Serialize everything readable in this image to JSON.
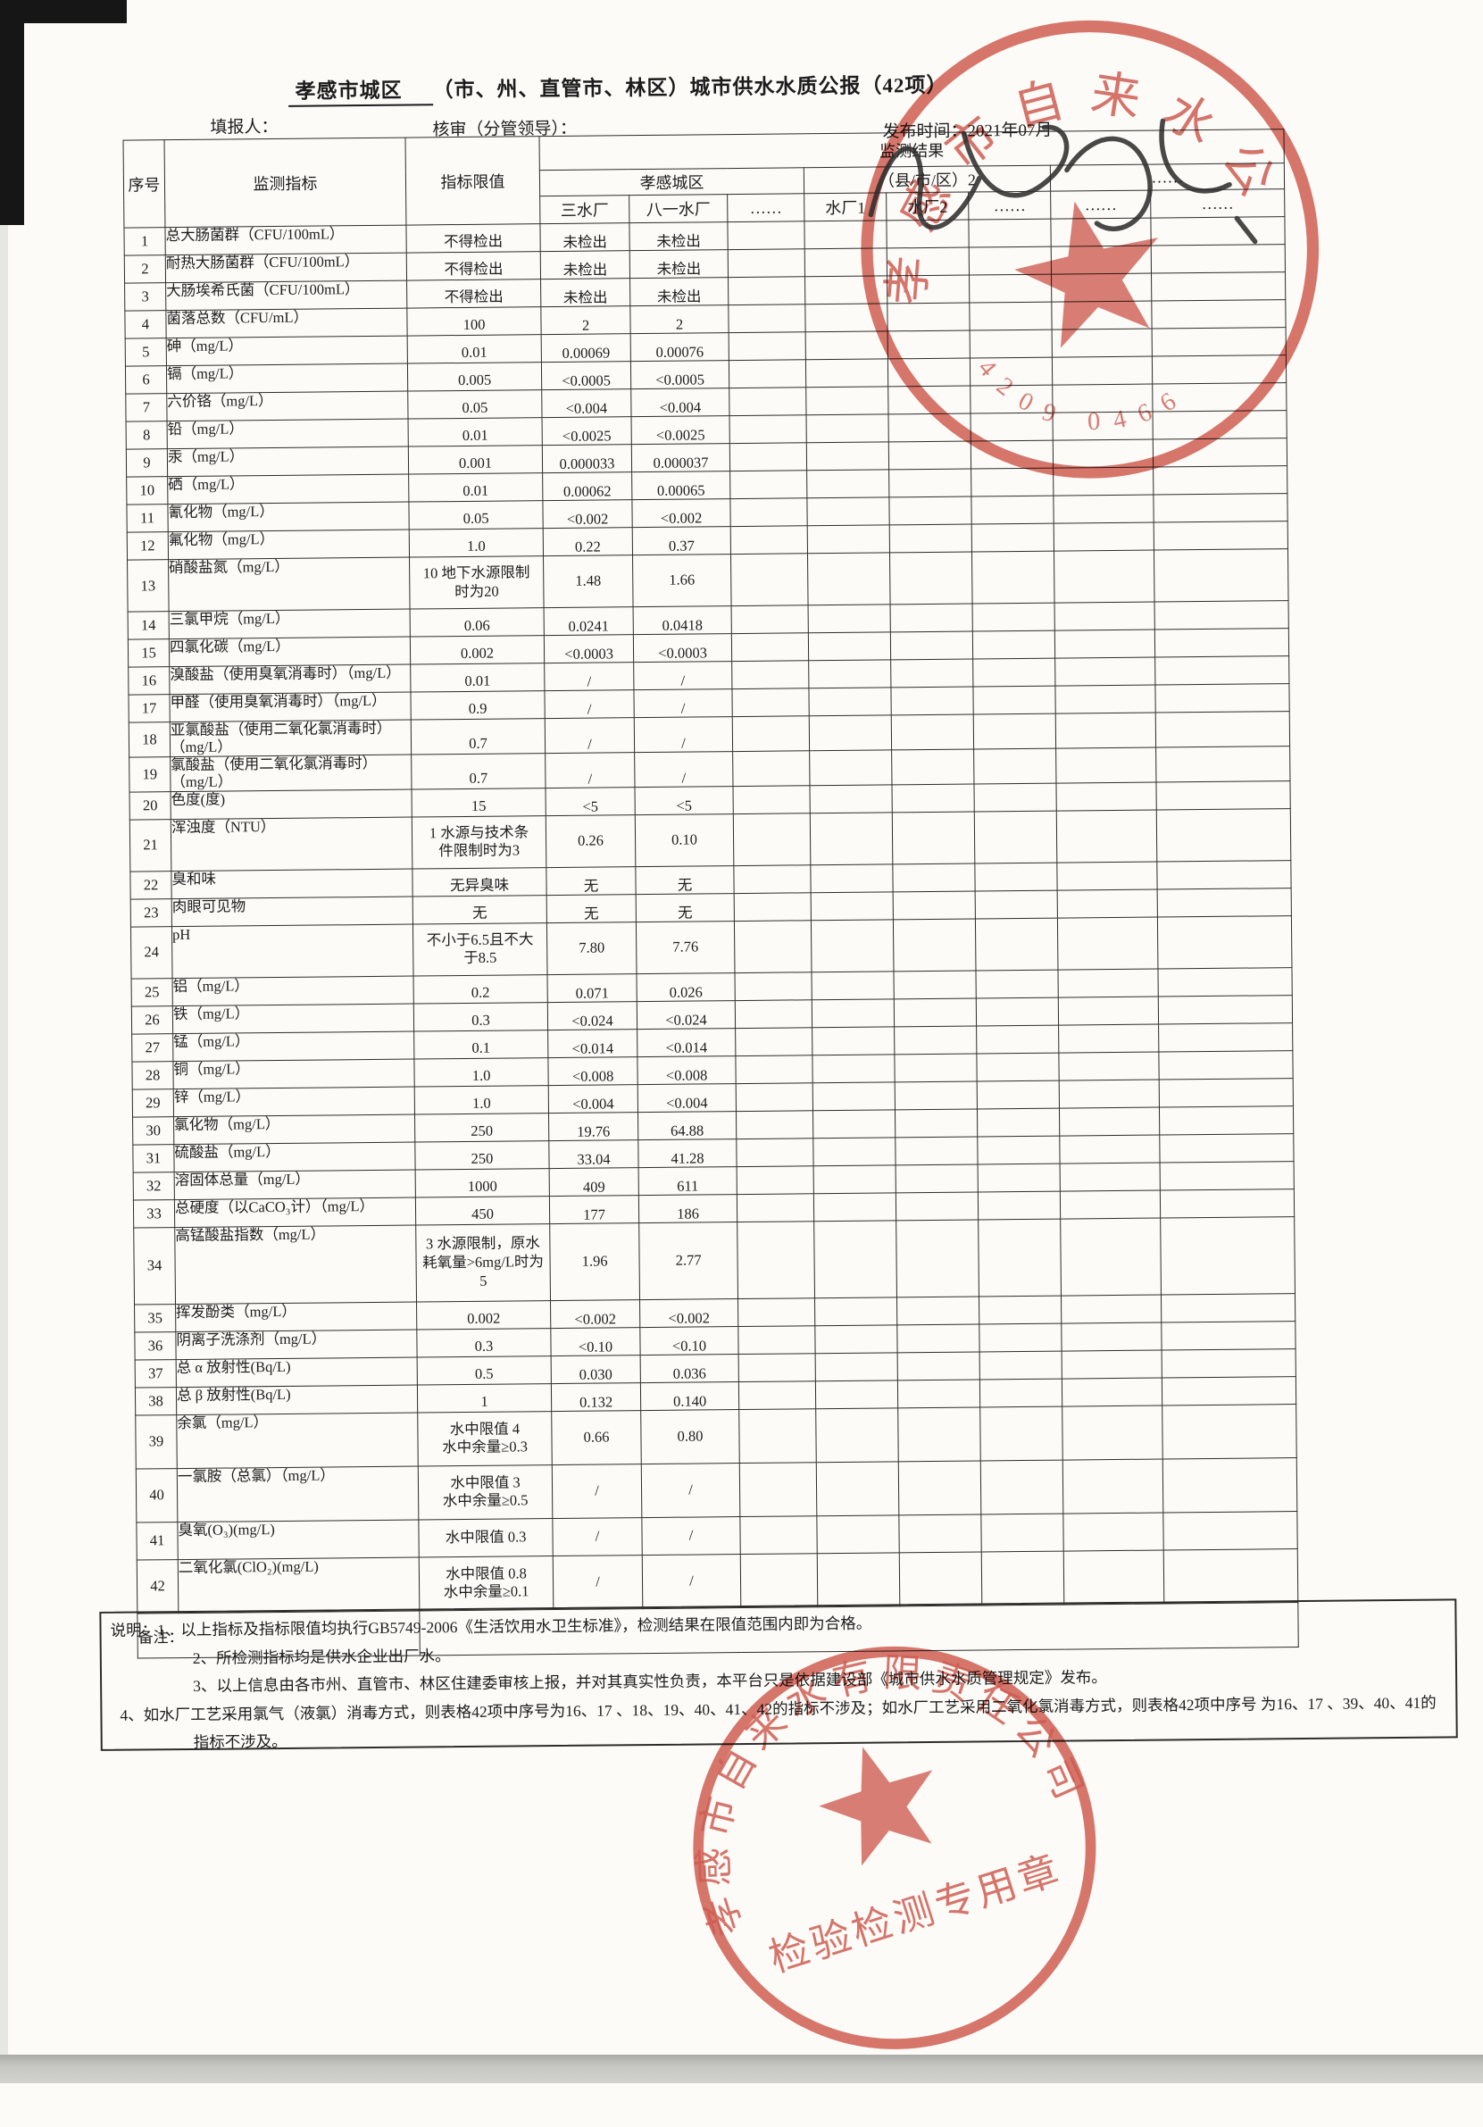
{
  "page": {
    "region": "孝感市城区",
    "title_suffix": "（市、州、直管市、林区）城市供水水质公报（42项）",
    "filler_label": "填报人：",
    "reviewer_label": "核审（分管领导）：",
    "publish_label": "发布时间：",
    "publish_value": "2021年07月"
  },
  "table": {
    "headers": {
      "seq": "序号",
      "indicator": "监测指标",
      "limit": "指标限值",
      "result": "监测结果",
      "region_group": "孝感城区",
      "county_group": "（县/市/区）2",
      "more_group": "……",
      "plants": [
        "三水厂",
        "八一水厂",
        "……",
        "水厂1",
        "水厂2",
        "……",
        "……",
        "……"
      ]
    },
    "remark_label": "备注：",
    "rows": [
      {
        "no": "1",
        "indicator": "总大肠菌群（CFU/100mL）",
        "limit": "不得检出",
        "v1": "未检出",
        "v2": "未检出"
      },
      {
        "no": "2",
        "indicator": "耐热大肠菌群（CFU/100mL）",
        "limit": "不得检出",
        "v1": "未检出",
        "v2": "未检出"
      },
      {
        "no": "3",
        "indicator": "大肠埃希氏菌（CFU/100mL）",
        "limit": "不得检出",
        "v1": "未检出",
        "v2": "未检出"
      },
      {
        "no": "4",
        "indicator": "菌落总数（CFU/mL）",
        "limit": "100",
        "v1": "2",
        "v2": "2"
      },
      {
        "no": "5",
        "indicator": "砷（mg/L）",
        "limit": "0.01",
        "v1": "0.00069",
        "v2": "0.00076"
      },
      {
        "no": "6",
        "indicator": "镉（mg/L）",
        "limit": "0.005",
        "v1": "<0.0005",
        "v2": "<0.0005"
      },
      {
        "no": "7",
        "indicator": "六价铬（mg/L）",
        "limit": "0.05",
        "v1": "<0.004",
        "v2": "<0.004"
      },
      {
        "no": "8",
        "indicator": "铅（mg/L）",
        "limit": "0.01",
        "v1": "<0.0025",
        "v2": "<0.0025"
      },
      {
        "no": "9",
        "indicator": "汞（mg/L）",
        "limit": "0.001",
        "v1": "0.000033",
        "v2": "0.000037"
      },
      {
        "no": "10",
        "indicator": "硒（mg/L）",
        "limit": "0.01",
        "v1": "0.00062",
        "v2": "0.00065"
      },
      {
        "no": "11",
        "indicator": "氰化物（mg/L）",
        "limit": "0.05",
        "v1": "<0.002",
        "v2": "<0.002"
      },
      {
        "no": "12",
        "indicator": "氟化物（mg/L）",
        "limit": "1.0",
        "v1": "0.22",
        "v2": "0.37"
      },
      {
        "no": "13",
        "indicator": "硝酸盐氮（mg/L）",
        "limit": "10 地下水源限制\n时为20",
        "v1": "1.48",
        "v2": "1.66",
        "h": 58
      },
      {
        "no": "14",
        "indicator": "三氯甲烷（mg/L）",
        "limit": "0.06",
        "v1": "0.0241",
        "v2": "0.0418"
      },
      {
        "no": "15",
        "indicator": "四氯化碳（mg/L）",
        "limit": "0.002",
        "v1": "<0.0003",
        "v2": "<0.0003"
      },
      {
        "no": "16",
        "indicator": "溴酸盐（使用臭氧消毒时）（mg/L）",
        "limit": "0.01",
        "v1": "/",
        "v2": "/"
      },
      {
        "no": "17",
        "indicator": "甲醛（使用臭氧消毒时）（mg/L）",
        "limit": "0.9",
        "v1": "/",
        "v2": "/"
      },
      {
        "no": "18",
        "indicator": "亚氯酸盐（使用二氧化氯消毒时）（mg/L）",
        "limit": "0.7",
        "v1": "/",
        "v2": "/"
      },
      {
        "no": "19",
        "indicator": "氯酸盐（使用二氧化氯消毒时）（mg/L）",
        "limit": "0.7",
        "v1": "/",
        "v2": "/"
      },
      {
        "no": "20",
        "indicator": "色度(度)",
        "limit": "15",
        "v1": "<5",
        "v2": "<5"
      },
      {
        "no": "21",
        "indicator": "浑浊度（NTU）",
        "limit": "1  水源与技术条\n件限制时为3",
        "v1": "0.26",
        "v2": "0.10",
        "h": 58
      },
      {
        "no": "22",
        "indicator": "臭和味",
        "limit": "无异臭味",
        "v1": "无",
        "v2": "无"
      },
      {
        "no": "23",
        "indicator": "肉眼可见物",
        "limit": "无",
        "v1": "无",
        "v2": "无"
      },
      {
        "no": "24",
        "indicator": "pH",
        "limit": "不小于6.5且不大\n于8.5",
        "v1": "7.80",
        "v2": "7.76",
        "h": 58
      },
      {
        "no": "25",
        "indicator": "铝（mg/L）",
        "limit": "0.2",
        "v1": "0.071",
        "v2": "0.026"
      },
      {
        "no": "26",
        "indicator": "铁（mg/L）",
        "limit": "0.3",
        "v1": "<0.024",
        "v2": "<0.024"
      },
      {
        "no": "27",
        "indicator": "锰（mg/L）",
        "limit": "0.1",
        "v1": "<0.014",
        "v2": "<0.014"
      },
      {
        "no": "28",
        "indicator": "铜（mg/L）",
        "limit": "1.0",
        "v1": "<0.008",
        "v2": "<0.008"
      },
      {
        "no": "29",
        "indicator": "锌（mg/L）",
        "limit": "1.0",
        "v1": "<0.004",
        "v2": "<0.004"
      },
      {
        "no": "30",
        "indicator": "氯化物（mg/L）",
        "limit": "250",
        "v1": "19.76",
        "v2": "64.88"
      },
      {
        "no": "31",
        "indicator": "硫酸盐（mg/L）",
        "limit": "250",
        "v1": "33.04",
        "v2": "41.28"
      },
      {
        "no": "32",
        "indicator": "溶固体总量（mg/L）",
        "limit": "1000",
        "v1": "409",
        "v2": "611"
      },
      {
        "no": "33",
        "indicator": "总硬度（以CaCO₃计）（mg/L）",
        "limit": "450",
        "v1": "177",
        "v2": "186"
      },
      {
        "no": "34",
        "indicator": "高锰酸盐指数（mg/L）",
        "limit": "3 水源限制，原水\n耗氧量>6mg/L时为\n5",
        "v1": "1.96",
        "v2": "2.77",
        "h": 86
      },
      {
        "no": "35",
        "indicator": "挥发酚类（mg/L）",
        "limit": "0.002",
        "v1": "<0.002",
        "v2": "<0.002"
      },
      {
        "no": "36",
        "indicator": "阴离子洗涤剂（mg/L）",
        "limit": "0.3",
        "v1": "<0.10",
        "v2": "<0.10"
      },
      {
        "no": "37",
        "indicator": "总 α 放射性(Bq/L)",
        "limit": "0.5",
        "v1": "0.030",
        "v2": "0.036"
      },
      {
        "no": "38",
        "indicator": "总 β 放射性(Bq/L)",
        "limit": "1",
        "v1": "0.132",
        "v2": "0.140"
      },
      {
        "no": "39",
        "indicator": "余氯（mg/L）",
        "limit": "水中限值 4\n水中余量≥0.3",
        "v1": "0.66",
        "v2": "0.80",
        "h": 60
      },
      {
        "no": "40",
        "indicator": "一氯胺（总氯）（mg/L）",
        "limit": "水中限值 3\n水中余量≥0.5",
        "v1": "/",
        "v2": "/",
        "h": 60
      },
      {
        "no": "41",
        "indicator": "臭氧(O₃)(mg/L)",
        "limit": "水中限值 0.3",
        "v1": "/",
        "v2": "/",
        "h": 42
      },
      {
        "no": "42",
        "indicator": "二氧化氯(ClO₂)(mg/L)",
        "limit": "水中限值 0.8\n水中余量≥0.1",
        "v1": "/",
        "v2": "/",
        "h": 60
      }
    ]
  },
  "notes": {
    "label": "说明：",
    "lines": [
      "1、以上指标及指标限值均执行GB5749-2006《生活饮用水卫生标准》，检测结果在限值范围内即为合格。",
      "2、所检测指标均是供水企业出厂水。",
      "3、以上信息由各市州、直管市、林区住建委审核上报，并对其真实性负责，本平台只是依据建设部《城市供水水质管理规定》发布。",
      "4、如水厂工艺采用氯气（液氯）消毒方式，则表格42项中序号为16、17 、18、19、40、41、42的指标不涉及；如水厂工艺采用二氧化氯消毒方式，则表格42项中序号 为16、17 、39、40、41的指标不涉及。"
    ]
  },
  "stamps": {
    "top": {
      "ring_text": "孝感市自来水公司",
      "code": "4209 0466"
    },
    "bottom": {
      "ring_text": "孝感市自来水有限责任公司",
      "banner": "检验检测专用章"
    }
  },
  "colors": {
    "seal_red": "#c5392c",
    "ink": "#1c1c1c",
    "paper": "#fcfbf8"
  }
}
